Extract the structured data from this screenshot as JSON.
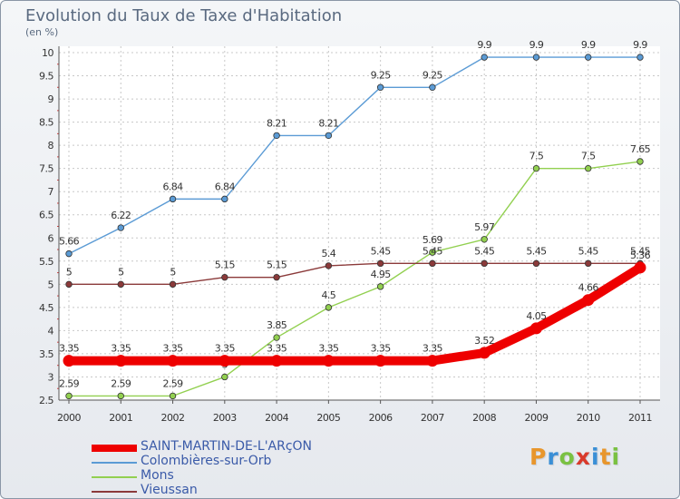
{
  "header": {
    "title": "Evolution du Taux de Taxe d'Habitation",
    "subtitle": "(en %)"
  },
  "branding": {
    "logo_text": "Proxiti",
    "logo_colors": [
      "#e8962c",
      "#3a8fd6",
      "#7ac142",
      "#d93a2b",
      "#3a8fd6",
      "#e8962c",
      "#7ac142"
    ]
  },
  "chart_data": {
    "type": "line",
    "title": "Evolution du Taux de Taxe d'Habitation",
    "ylabel": "(en %)",
    "xlabel": "",
    "x": [
      "2000",
      "2001",
      "2002",
      "2003",
      "2004",
      "2005",
      "2006",
      "2007",
      "2008",
      "2009",
      "2010",
      "2011"
    ],
    "ylim": [
      2.5,
      10
    ],
    "yticks": [
      "2.5",
      "3",
      "3.5",
      "4",
      "4.5",
      "5",
      "5.5",
      "6",
      "6.5",
      "7",
      "7.5",
      "8",
      "8.5",
      "9",
      "9.5",
      "10"
    ],
    "grid": true,
    "legend_position": "bottom-left",
    "series": [
      {
        "name": "SAINT-MARTIN-DE-L'ARçON",
        "color": "#ee0000",
        "highlight": true,
        "values": [
          3.35,
          3.35,
          3.35,
          3.35,
          3.35,
          3.35,
          3.35,
          3.35,
          3.52,
          4.05,
          4.66,
          5.36
        ],
        "labels": [
          "3.35",
          "3.35",
          "3.35",
          "3.35",
          "3.35",
          "3.35",
          "3.35",
          "3.35",
          "3.52",
          "4.05",
          "4.66",
          "5.36"
        ]
      },
      {
        "name": "Colombières-sur-Orb",
        "color": "#5b9bd5",
        "values": [
          5.66,
          6.22,
          6.84,
          6.84,
          8.21,
          8.21,
          9.25,
          9.25,
          9.9,
          9.9,
          9.9,
          9.9
        ],
        "labels": [
          "5.66",
          "6.22",
          "6.84",
          "6.84",
          "8.21",
          "8.21",
          "9.25",
          "9.25",
          "9.9",
          "9.9",
          "9.9",
          "9.9"
        ]
      },
      {
        "name": "Mons",
        "color": "#92d050",
        "values": [
          2.59,
          2.59,
          2.59,
          3.0,
          3.85,
          4.5,
          4.95,
          5.69,
          5.97,
          7.5,
          7.5,
          7.65
        ],
        "labels": [
          "2.59",
          "2.59",
          "2.59",
          "3",
          "3.85",
          "4.5",
          "4.95",
          "5.69",
          "5.97",
          "7.5",
          "7.5",
          "7.65"
        ]
      },
      {
        "name": "Vieussan",
        "color": "#8b3a3a",
        "values": [
          5.0,
          5.0,
          5.0,
          5.15,
          5.15,
          5.4,
          5.45,
          5.45,
          5.45,
          5.45,
          5.45,
          5.45
        ],
        "labels": [
          "5",
          "5",
          "5",
          "5.15",
          "5.15",
          "5.4",
          "5.45",
          "5.45",
          "5.45",
          "5.45",
          "5.45",
          "5.45"
        ]
      }
    ]
  }
}
